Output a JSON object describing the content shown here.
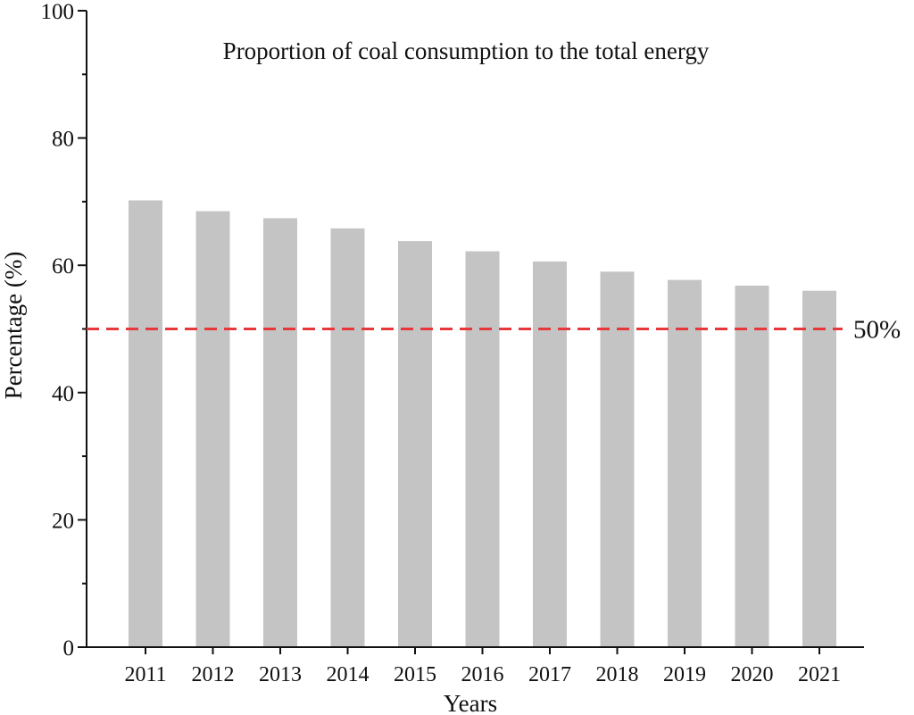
{
  "chart_data": {
    "type": "bar",
    "title": "Proportion of coal consumption to the total energy",
    "xlabel": "Years",
    "ylabel": "Percentage (%)",
    "categories": [
      "2011",
      "2012",
      "2013",
      "2014",
      "2015",
      "2016",
      "2017",
      "2018",
      "2019",
      "2020",
      "2021"
    ],
    "series": [
      {
        "values": [
          70.2,
          68.5,
          67.4,
          65.8,
          63.8,
          62.2,
          60.6,
          59.0,
          57.7,
          56.8,
          56.0
        ]
      }
    ],
    "ylim": [
      0,
      100
    ],
    "yticks": [
      0,
      20,
      40,
      60,
      80,
      100
    ],
    "reference_line": {
      "value": 50,
      "label": "50%",
      "style": "dashed"
    },
    "grid": false,
    "colors": {
      "bar": "#c4c4c4",
      "reference_line": "#e8373a",
      "axis": "#111111"
    }
  }
}
